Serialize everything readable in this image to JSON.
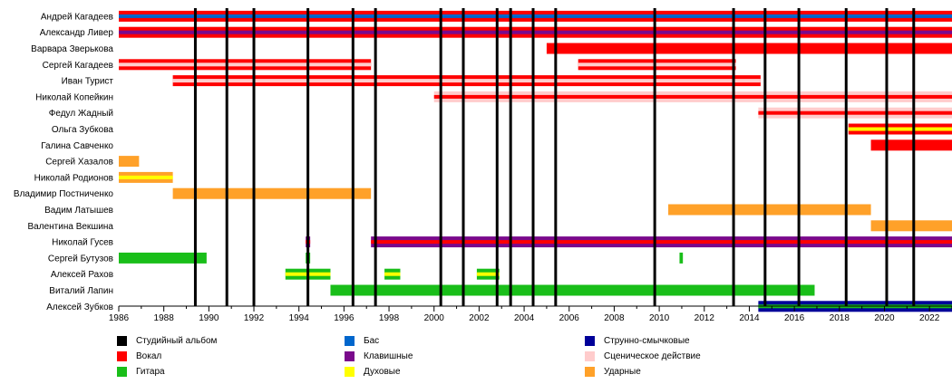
{
  "chart_data": {
    "type": "timeline",
    "xlim": [
      1986,
      2023
    ],
    "x_ticks": [
      1986,
      1988,
      1990,
      1992,
      1994,
      1996,
      1998,
      2000,
      2002,
      2004,
      2006,
      2008,
      2010,
      2012,
      2014,
      2016,
      2018,
      2020,
      2022
    ],
    "x_tick_labels": [
      "1986",
      "1988",
      "1990",
      "1992",
      "1994",
      "1996",
      "1998",
      "2000",
      "2002",
      "2004",
      "2006",
      "2008",
      "2010",
      "2012",
      "2014",
      "2016",
      "2018",
      "2020",
      "2022"
    ],
    "album_years": [
      1989.4,
      1990.8,
      1992.0,
      1994.4,
      1996.4,
      1997.4,
      2000.3,
      2001.3,
      2002.8,
      2003.4,
      2004.4,
      2005.4,
      2009.8,
      2013.3,
      2014.7,
      2016.2,
      2018.3,
      2020.1,
      2021.3
    ],
    "members": [
      {
        "name": "Андрей Кагадеев",
        "bars": [
          {
            "start": 1986.0,
            "end": 2023.0,
            "colors": [
              "#ff0000",
              "#0066cc"
            ]
          }
        ]
      },
      {
        "name": "Александр Ливер",
        "bars": [
          {
            "start": 1986.0,
            "end": 2023.0,
            "colors": [
              "#ff0000",
              "#7a0a8c"
            ]
          }
        ]
      },
      {
        "name": "Варвара Зверькова",
        "bars": [
          {
            "start": 2005.0,
            "end": 2023.0,
            "colors": [
              "#ff0000"
            ]
          }
        ]
      },
      {
        "name": "Сергей Кагадеев",
        "bars": [
          {
            "start": 1986.0,
            "end": 1997.2,
            "colors": [
              "#ff0000",
              "#ffcccc"
            ]
          },
          {
            "start": 2006.4,
            "end": 2013.4,
            "colors": [
              "#ff0000",
              "#ffcccc"
            ]
          }
        ]
      },
      {
        "name": "Иван Турист",
        "bars": [
          {
            "start": 1988.4,
            "end": 2014.5,
            "colors": [
              "#ff0000",
              "#ffcccc"
            ]
          }
        ]
      },
      {
        "name": "Николай Копейкин",
        "bars": [
          {
            "start": 2000.0,
            "end": 2023.0,
            "colors": [
              "#ffcccc",
              "#ff0000"
            ]
          }
        ]
      },
      {
        "name": "Федул Жадный",
        "bars": [
          {
            "start": 2014.4,
            "end": 2023.0,
            "colors": [
              "#ffcccc",
              "#ff0000"
            ]
          }
        ]
      },
      {
        "name": "Ольга Зубкова",
        "bars": [
          {
            "start": 2018.4,
            "end": 2023.0,
            "colors": [
              "#ff0000",
              "#ffff00"
            ]
          }
        ]
      },
      {
        "name": "Галина Савченко",
        "bars": [
          {
            "start": 2019.4,
            "end": 2023.0,
            "colors": [
              "#ff0000"
            ]
          }
        ]
      },
      {
        "name": "Сергей Хазалов",
        "bars": [
          {
            "start": 1986.0,
            "end": 1986.9,
            "colors": [
              "#ffa129"
            ]
          }
        ]
      },
      {
        "name": "Николай Родионов",
        "bars": [
          {
            "start": 1986.0,
            "end": 1988.4,
            "colors": [
              "#ffa129",
              "#ffff00"
            ]
          }
        ]
      },
      {
        "name": "Владимир Постниченко",
        "bars": [
          {
            "start": 1988.4,
            "end": 1997.2,
            "colors": [
              "#ffa129"
            ]
          }
        ]
      },
      {
        "name": "Вадим Латышев",
        "bars": [
          {
            "start": 2010.4,
            "end": 2019.4,
            "colors": [
              "#ffa129"
            ]
          }
        ]
      },
      {
        "name": "Валентина Векшина",
        "bars": [
          {
            "start": 2019.4,
            "end": 2023.0,
            "colors": [
              "#ffa129"
            ]
          }
        ]
      },
      {
        "name": "Николай Гусев",
        "bars": [
          {
            "start": 1994.3,
            "end": 1994.5,
            "colors": [
              "#7a0a8c",
              "#ff0000"
            ]
          },
          {
            "start": 1997.2,
            "end": 2023.0,
            "colors": [
              "#7a0a8c",
              "#ff0000"
            ]
          }
        ]
      },
      {
        "name": "Сергей Бутузов",
        "bars": [
          {
            "start": 1986.0,
            "end": 1989.9,
            "colors": [
              "#19be19"
            ]
          },
          {
            "start": 1994.3,
            "end": 1994.5,
            "colors": [
              "#19be19"
            ]
          },
          {
            "start": 2010.9,
            "end": 2011.05,
            "colors": [
              "#19be19"
            ]
          }
        ]
      },
      {
        "name": "Алексей Рахов",
        "bars": [
          {
            "start": 1993.4,
            "end": 1995.4,
            "colors": [
              "#19be19",
              "#ffff00"
            ]
          },
          {
            "start": 1997.8,
            "end": 1998.5,
            "colors": [
              "#19be19",
              "#ffff00"
            ]
          },
          {
            "start": 2001.9,
            "end": 2002.9,
            "colors": [
              "#19be19",
              "#ffff00"
            ]
          }
        ]
      },
      {
        "name": "Виталий Лапин",
        "bars": [
          {
            "start": 1995.4,
            "end": 2016.9,
            "colors": [
              "#19be19"
            ]
          }
        ]
      },
      {
        "name": "Алексей Зубков",
        "bars": [
          {
            "start": 2014.4,
            "end": 2023.0,
            "colors": [
              "#000099",
              "#19be19"
            ]
          }
        ]
      }
    ],
    "legend": [
      {
        "label": "Студийный альбом",
        "color": "#000000",
        "column": 0,
        "row": 0
      },
      {
        "label": "Вокал",
        "color": "#ff0000",
        "column": 0,
        "row": 1
      },
      {
        "label": "Гитара",
        "color": "#19be19",
        "column": 0,
        "row": 2
      },
      {
        "label": "Бас",
        "color": "#0066cc",
        "column": 1,
        "row": 0
      },
      {
        "label": "Клавишные",
        "color": "#7a0a8c",
        "column": 1,
        "row": 1
      },
      {
        "label": "Духовые",
        "color": "#ffff00",
        "column": 1,
        "row": 2
      },
      {
        "label": "Струнно-смычковые",
        "color": "#000099",
        "column": 2,
        "row": 0
      },
      {
        "label": "Сценическое действие",
        "color": "#ffcccc",
        "column": 2,
        "row": 1
      },
      {
        "label": "Ударные",
        "color": "#ffa129",
        "column": 2,
        "row": 2
      }
    ]
  }
}
